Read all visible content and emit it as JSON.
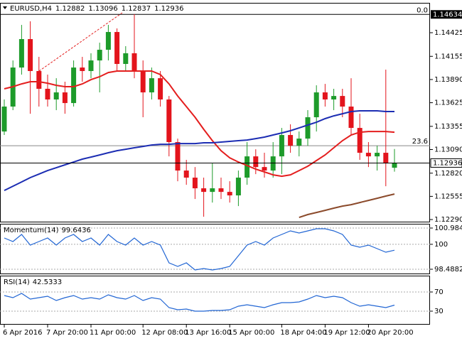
{
  "chart_data": {
    "type": "candlestick",
    "symbol": "EURUSD,H4",
    "categories": [
      "6 Apr 2016",
      null,
      null,
      null,
      null,
      "7 Apr 20:00",
      null,
      null,
      null,
      null,
      "11 Apr 00:00",
      null,
      null,
      null,
      null,
      null,
      "12 Apr 08:00",
      null,
      null,
      null,
      null,
      "13 Apr 16:00",
      null,
      null,
      null,
      null,
      "15 Apr 00:00",
      null,
      null,
      null,
      null,
      null,
      "18 Apr 04:00",
      null,
      null,
      null,
      null,
      "19 Apr 12:00",
      null,
      null,
      null,
      null,
      "20 Apr 20:00",
      null,
      null,
      null
    ],
    "open": [
      1.13296,
      1.13581,
      1.14027,
      1.14352,
      1.13987,
      1.13784,
      1.13662,
      1.13743,
      1.13621,
      1.14027,
      1.13987,
      1.14108,
      1.1423,
      1.14433,
      1.14068,
      1.1419,
      1.13987,
      1.13743,
      1.13905,
      1.13662,
      1.13175,
      1.1285,
      1.12769,
      1.12647,
      1.12606,
      1.12647,
      1.12606,
      1.12566,
      1.12769,
      1.13012,
      1.1289,
      1.1285,
      1.13012,
      1.13256,
      1.13134,
      1.13215,
      1.13459,
      1.13743,
      1.13662,
      1.13702,
      1.13581,
      1.13337,
      1.13053,
      1.13012,
      1.13053,
      1.12882
    ],
    "high": [
      1.13662,
      1.14108,
      1.14514,
      1.14555,
      1.14149,
      1.13946,
      1.13905,
      1.13865,
      1.14108,
      1.14149,
      1.1419,
      1.14311,
      1.14514,
      1.14474,
      1.14271,
      1.14636,
      1.14108,
      1.14027,
      1.13987,
      1.13702,
      1.13215,
      1.12972,
      1.1289,
      1.12769,
      1.12931,
      1.12769,
      1.12728,
      1.1285,
      1.13175,
      1.13093,
      1.13053,
      1.13175,
      1.13337,
      1.13378,
      1.13296,
      1.1354,
      1.13824,
      1.1384,
      1.13784,
      1.13784,
      1.13905,
      1.13499,
      1.13175,
      1.13134,
      1.14003,
      1.13096
    ],
    "low": [
      1.13256,
      1.1354,
      1.13946,
      1.13499,
      1.13581,
      1.13581,
      1.1354,
      1.13499,
      1.13581,
      1.13865,
      1.13905,
      1.13743,
      1.14108,
      1.13987,
      1.13987,
      1.13905,
      1.13459,
      1.13662,
      1.13581,
      1.13012,
      1.12728,
      1.12687,
      1.12525,
      1.12322,
      1.12484,
      1.12525,
      1.12484,
      1.12444,
      1.12687,
      1.12809,
      1.12769,
      1.12769,
      1.12809,
      1.13053,
      1.13012,
      1.13134,
      1.13296,
      1.13581,
      1.1354,
      1.13459,
      1.13256,
      1.12972,
      1.1289,
      1.1285,
      1.12671,
      1.12837
    ],
    "close": [
      1.13581,
      1.14027,
      1.14352,
      1.13987,
      1.13784,
      1.13662,
      1.13743,
      1.13621,
      1.14027,
      1.13987,
      1.14108,
      1.1423,
      1.14433,
      1.14068,
      1.1419,
      1.13987,
      1.13743,
      1.13905,
      1.13662,
      1.13175,
      1.1285,
      1.12769,
      1.12647,
      1.12606,
      1.12647,
      1.12606,
      1.12566,
      1.12769,
      1.13012,
      1.1289,
      1.1285,
      1.13012,
      1.13256,
      1.13134,
      1.13215,
      1.13459,
      1.13743,
      1.13662,
      1.13702,
      1.13581,
      1.13337,
      1.13053,
      1.13012,
      1.13053,
      1.12931,
      1.12936
    ],
    "up_color": "#1d9b2a",
    "down_color": "#e3141c",
    "ylim": [
      1.12266,
      1.14758
    ],
    "yticks": [
      1.14425,
      1.14155,
      {
        "value": 1.1389,
        "label": "1.13890"
      },
      1.13625,
      1.13355,
      {
        "value": 1.1309,
        "label": "1.13090"
      },
      {
        "value": 1.1282,
        "label": "1.12820"
      },
      1.12555,
      {
        "value": 1.1229,
        "label": "1.12290"
      }
    ],
    "overlays": [
      {
        "color": "#e41e1e",
        "values": [
          1.13784,
          1.13808,
          1.1384,
          1.13865,
          1.13865,
          1.13848,
          1.13824,
          1.13808,
          1.13808,
          1.1384,
          1.13889,
          1.13922,
          1.1397,
          1.13987,
          1.13987,
          1.13987,
          1.13987,
          1.13987,
          1.13946,
          1.1384,
          1.13702,
          1.13581,
          1.13459,
          1.13321,
          1.13191,
          1.13077,
          1.12996,
          1.12947,
          1.12907,
          1.12866,
          1.12834,
          1.12801,
          1.12785,
          1.12801,
          1.1285,
          1.12899,
          1.12964,
          1.13028,
          1.1311,
          1.13191,
          1.13256,
          1.13288,
          1.13296,
          1.13296,
          1.13296,
          1.13288
        ]
      },
      {
        "color": "#1c2db3",
        "values": [
          1.12622,
          1.12671,
          1.1272,
          1.12769,
          1.12809,
          1.1285,
          1.12882,
          1.12915,
          1.12947,
          1.1298,
          1.13004,
          1.13028,
          1.13053,
          1.13077,
          1.13093,
          1.1311,
          1.13126,
          1.13142,
          1.1315,
          1.1315,
          1.13158,
          1.13158,
          1.13158,
          1.13167,
          1.13167,
          1.13175,
          1.13183,
          1.13191,
          1.13199,
          1.13215,
          1.13232,
          1.13256,
          1.1328,
          1.13305,
          1.13337,
          1.1337,
          1.13402,
          1.13443,
          1.13475,
          1.13499,
          1.13524,
          1.13532,
          1.13532,
          1.13532,
          1.13524,
          1.13524
        ]
      },
      {
        "color": "#8b4a2b",
        "values": [
          null,
          null,
          null,
          null,
          null,
          null,
          null,
          null,
          null,
          null,
          null,
          null,
          null,
          null,
          null,
          null,
          null,
          null,
          null,
          null,
          null,
          null,
          null,
          null,
          null,
          null,
          null,
          null,
          null,
          null,
          null,
          null,
          null,
          null,
          1.12314,
          1.12347,
          1.12371,
          1.12395,
          1.1242,
          1.12444,
          1.1246,
          1.12484,
          1.12509,
          1.12533,
          1.12558,
          1.12582
        ]
      }
    ],
    "levels": [
      {
        "label": "0.0",
        "value": 1.14634
      },
      {
        "label": "23.6",
        "value": 1.13134
      }
    ],
    "indicators": [
      {
        "name": "Momentum(14)",
        "color": "#2266d4",
        "ylim": [
          98.23,
          101.2
        ],
        "yticks": [
          100.9842,
          100,
          98.4882
        ],
        "values": [
          100.382,
          100.167,
          100.597,
          99.952,
          100.167,
          100.382,
          99.952,
          100.382,
          100.597,
          100.167,
          100.382,
          99.952,
          100.597,
          100.167,
          99.952,
          100.382,
          99.952,
          100.167,
          99.952,
          98.876,
          98.661,
          98.876,
          98.445,
          98.531,
          98.445,
          98.531,
          98.661,
          99.306,
          99.952,
          100.167,
          99.952,
          100.382,
          100.597,
          100.812,
          100.683,
          100.812,
          100.941,
          100.941,
          100.812,
          100.597,
          99.952,
          99.822,
          99.952,
          99.736,
          99.521,
          99.6436
        ]
      },
      {
        "name": "RSI(14)",
        "color": "#2266d4",
        "ylim": [
          3.3,
          102.6
        ],
        "yticks": [
          70,
          30
        ],
        "values": [
          62.6,
          58.1,
          67.0,
          55.2,
          58.1,
          61.1,
          52.2,
          58.1,
          62.6,
          55.2,
          58.1,
          55.2,
          64.1,
          58.1,
          55.2,
          62.6,
          52.2,
          58.1,
          55.2,
          37.4,
          33.0,
          34.4,
          30.0,
          30.0,
          31.5,
          31.5,
          33.0,
          40.4,
          43.3,
          40.4,
          37.4,
          43.3,
          47.8,
          47.8,
          49.3,
          55.2,
          62.6,
          58.1,
          61.1,
          58.1,
          47.8,
          40.4,
          43.3,
          40.4,
          37.4,
          42.5333
        ]
      }
    ]
  }
}
